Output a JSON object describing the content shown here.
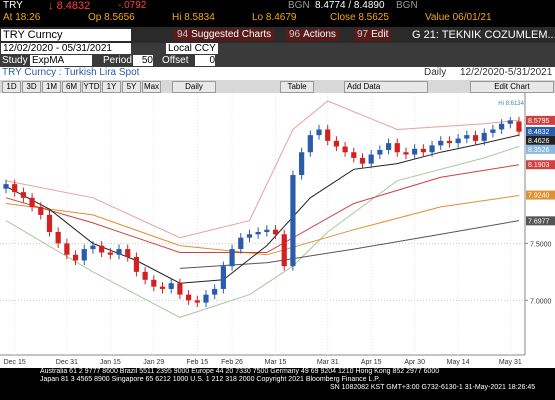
{
  "header": {
    "ticker": "TRY",
    "last": "8.4832",
    "change": "-.0792",
    "bid_src": "BGN",
    "bid_ask": "8.4774 / 8.4890",
    "ask_src": "BGN",
    "time": "At 18:26",
    "open": "Op 8.5656",
    "high": "Hi 8.5834",
    "low": "Lo 8.4679",
    "close": "Close 8.5625",
    "value_date": "Value 06/01/21"
  },
  "menu": {
    "security": "TRY Curncy",
    "tabs": [
      {
        "key": "94",
        "label": "Suggested Charts"
      },
      {
        "key": "96",
        "label": "Actions"
      },
      {
        "key": "97",
        "label": "Edit"
      }
    ],
    "chart_name": "G 21: TEKNIK COZUMLEM..."
  },
  "range": {
    "dates": "12/02/2020 - 05/31/2021",
    "currency": "Local CCY"
  },
  "study": {
    "label": "Study",
    "name": "ExpMA",
    "period_label": "Period",
    "period": "50",
    "offset_label": "Offset",
    "offset": "0"
  },
  "chart_header": {
    "security_name": "TRY Curncy : Turkish Lira Spot",
    "frequency": "Daily",
    "range": "12/2/2020-5/31/2021"
  },
  "buttons": {
    "periods": [
      "1D",
      "3D",
      "1M",
      "6M",
      "YTD",
      "1Y",
      "5Y",
      "Max"
    ],
    "frequency": "Daily",
    "table": "Table",
    "add_data": "Add Data",
    "edit_chart": "Edit Chart"
  },
  "chart_data": {
    "type": "candlestick",
    "categories": [
      null,
      "Dec 15",
      null,
      null,
      null,
      null,
      null,
      "Dec 31",
      null,
      null,
      null,
      null,
      "Jan 15",
      null,
      null,
      null,
      null,
      "Jan 29",
      null,
      null,
      null,
      null,
      "Feb 15",
      null,
      null,
      null,
      "Feb 26",
      null,
      null,
      null,
      null,
      "Mar 15",
      null,
      null,
      null,
      null,
      null,
      "Mar 31",
      null,
      null,
      null,
      null,
      "Apr 15",
      null,
      null,
      null,
      null,
      "Apr 30",
      null,
      null,
      null,
      null,
      "May 14",
      null,
      null,
      null,
      null,
      null,
      "May 31",
      null
    ],
    "years": [
      "2020",
      "2021"
    ],
    "open": [
      7.98,
      8.02,
      7.95,
      7.9,
      7.82,
      7.75,
      7.6,
      7.5,
      7.4,
      7.35,
      7.45,
      7.48,
      7.42,
      7.4,
      7.45,
      7.38,
      7.25,
      7.18,
      7.12,
      7.1,
      7.15,
      7.05,
      7.0,
      6.98,
      7.05,
      7.1,
      7.3,
      7.45,
      7.55,
      7.58,
      7.6,
      7.62,
      7.58,
      7.3,
      8.1,
      8.3,
      8.45,
      8.5,
      8.4,
      8.35,
      8.3,
      8.25,
      8.2,
      8.28,
      8.32,
      8.38,
      8.3,
      8.28,
      8.33,
      8.3,
      8.36,
      8.4,
      8.38,
      8.42,
      8.45,
      8.4,
      8.47,
      8.5,
      8.55,
      8.57
    ],
    "high": [
      8.06,
      8.06,
      7.99,
      7.94,
      7.86,
      7.79,
      7.64,
      7.54,
      7.44,
      7.49,
      7.52,
      7.52,
      7.46,
      7.49,
      7.49,
      7.42,
      7.29,
      7.22,
      7.16,
      7.19,
      7.19,
      7.09,
      7.04,
      7.09,
      7.14,
      7.34,
      7.49,
      7.59,
      7.62,
      7.64,
      7.66,
      7.66,
      7.62,
      8.14,
      8.34,
      8.49,
      8.54,
      8.54,
      8.44,
      8.39,
      8.34,
      8.29,
      8.32,
      8.36,
      8.42,
      8.42,
      8.34,
      8.37,
      8.37,
      8.4,
      8.44,
      8.44,
      8.46,
      8.49,
      8.49,
      8.51,
      8.54,
      8.59,
      8.61,
      8.61
    ],
    "low": [
      7.94,
      7.91,
      7.86,
      7.78,
      7.71,
      7.56,
      7.46,
      7.36,
      7.31,
      7.31,
      7.41,
      7.38,
      7.36,
      7.36,
      7.34,
      7.21,
      7.14,
      7.08,
      7.06,
      7.06,
      7.01,
      6.96,
      6.94,
      6.94,
      7.01,
      7.06,
      7.26,
      7.41,
      7.51,
      7.54,
      7.56,
      7.54,
      7.26,
      7.26,
      8.06,
      8.26,
      8.41,
      8.36,
      8.31,
      8.26,
      8.21,
      8.16,
      8.16,
      8.24,
      8.28,
      8.26,
      8.24,
      8.24,
      8.26,
      8.26,
      8.32,
      8.34,
      8.34,
      8.38,
      8.36,
      8.36,
      8.43,
      8.46,
      8.51,
      8.44
    ],
    "close": [
      8.02,
      7.95,
      7.9,
      7.82,
      7.75,
      7.6,
      7.5,
      7.4,
      7.35,
      7.45,
      7.48,
      7.42,
      7.4,
      7.45,
      7.38,
      7.25,
      7.18,
      7.12,
      7.1,
      7.15,
      7.05,
      7.0,
      6.98,
      7.05,
      7.1,
      7.3,
      7.45,
      7.55,
      7.58,
      7.6,
      7.62,
      7.58,
      7.3,
      8.1,
      8.3,
      8.45,
      8.5,
      8.4,
      8.35,
      8.3,
      8.25,
      8.2,
      8.28,
      8.32,
      8.38,
      8.3,
      8.28,
      8.33,
      8.3,
      8.36,
      8.4,
      8.38,
      8.42,
      8.45,
      8.4,
      8.47,
      8.5,
      8.55,
      8.58,
      8.48
    ],
    "up_color": "#2a5caa",
    "down_color": "#d42020",
    "ylim": [
      6.52,
      8.82
    ],
    "yticks": [
      {
        "value": 7,
        "label": "7.0000"
      },
      {
        "value": 7.5,
        "label": "7.5000"
      }
    ],
    "grid": true,
    "overlays": [
      {
        "color": "#e8a0a0",
        "x": [
          0,
          10,
          20,
          28,
          33,
          37,
          45,
          55,
          59
        ],
        "values": [
          8.05,
          7.9,
          7.55,
          7.7,
          8.5,
          8.75,
          8.5,
          8.55,
          8.58
        ]
      },
      {
        "color": "#a8c8a0",
        "x": [
          0,
          10,
          20,
          28,
          33,
          37,
          45,
          55,
          59
        ],
        "values": [
          7.7,
          7.25,
          6.85,
          7.05,
          7.3,
          7.6,
          8.05,
          8.25,
          8.35
        ]
      },
      {
        "color": "#555555",
        "x": [
          20,
          30,
          40,
          50,
          59
        ],
        "values": [
          7.28,
          7.33,
          7.45,
          7.58,
          7.7
        ]
      },
      {
        "color": "#e09030",
        "x": [
          0,
          10,
          20,
          30,
          40,
          50,
          59
        ],
        "values": [
          7.85,
          7.75,
          7.48,
          7.4,
          7.62,
          7.82,
          7.92
        ]
      },
      {
        "color": "#d04040",
        "x": [
          0,
          10,
          20,
          30,
          40,
          50,
          59
        ],
        "values": [
          7.9,
          7.68,
          7.42,
          7.42,
          7.85,
          8.08,
          8.19
        ]
      },
      {
        "color": "#222222",
        "x": [
          0,
          5,
          10,
          15,
          20,
          25,
          30,
          35,
          40,
          45,
          50,
          55,
          59
        ],
        "values": [
          8.0,
          7.8,
          7.5,
          7.35,
          7.15,
          7.18,
          7.48,
          7.9,
          8.15,
          8.2,
          8.3,
          8.38,
          8.45
        ]
      }
    ],
    "end_labels": [
      {
        "value": 8.5795,
        "label": "8.5795",
        "color": "#d04040"
      },
      {
        "value": 8.4832,
        "label": "8.4832",
        "color": "#2a5caa"
      },
      {
        "value": 8.4626,
        "label": "8.4626",
        "color": "#222222"
      },
      {
        "value": 8.3526,
        "label": "8.3526",
        "color": "#8ab8e0"
      },
      {
        "value": 8.1903,
        "label": "8.1903",
        "color": "#d04040"
      },
      {
        "value": 7.924,
        "label": "7.9240",
        "color": "#e09030"
      },
      {
        "value": 7.6977,
        "label": "7.6977",
        "color": "#555555"
      }
    ],
    "annotation": "Hi 8.6134"
  },
  "footer": {
    "lines": [
      "Australia 61 2 9777 8600 Brazil 5511 2395 9000 Europe 44 20 7330 7500 Germany 49 69 9204 1210 Hong Kong 852 2977 6000",
      "Japan 81 3 4565 8900        Singapore 65 6212 1000        U.S. 1 212 318 2000        Copyright 2021 Bloomberg Finance L.P.",
      "SN 1082082 KST  GMT+3:00 G732-6130-1 31-May-2021 18:26:45"
    ]
  }
}
